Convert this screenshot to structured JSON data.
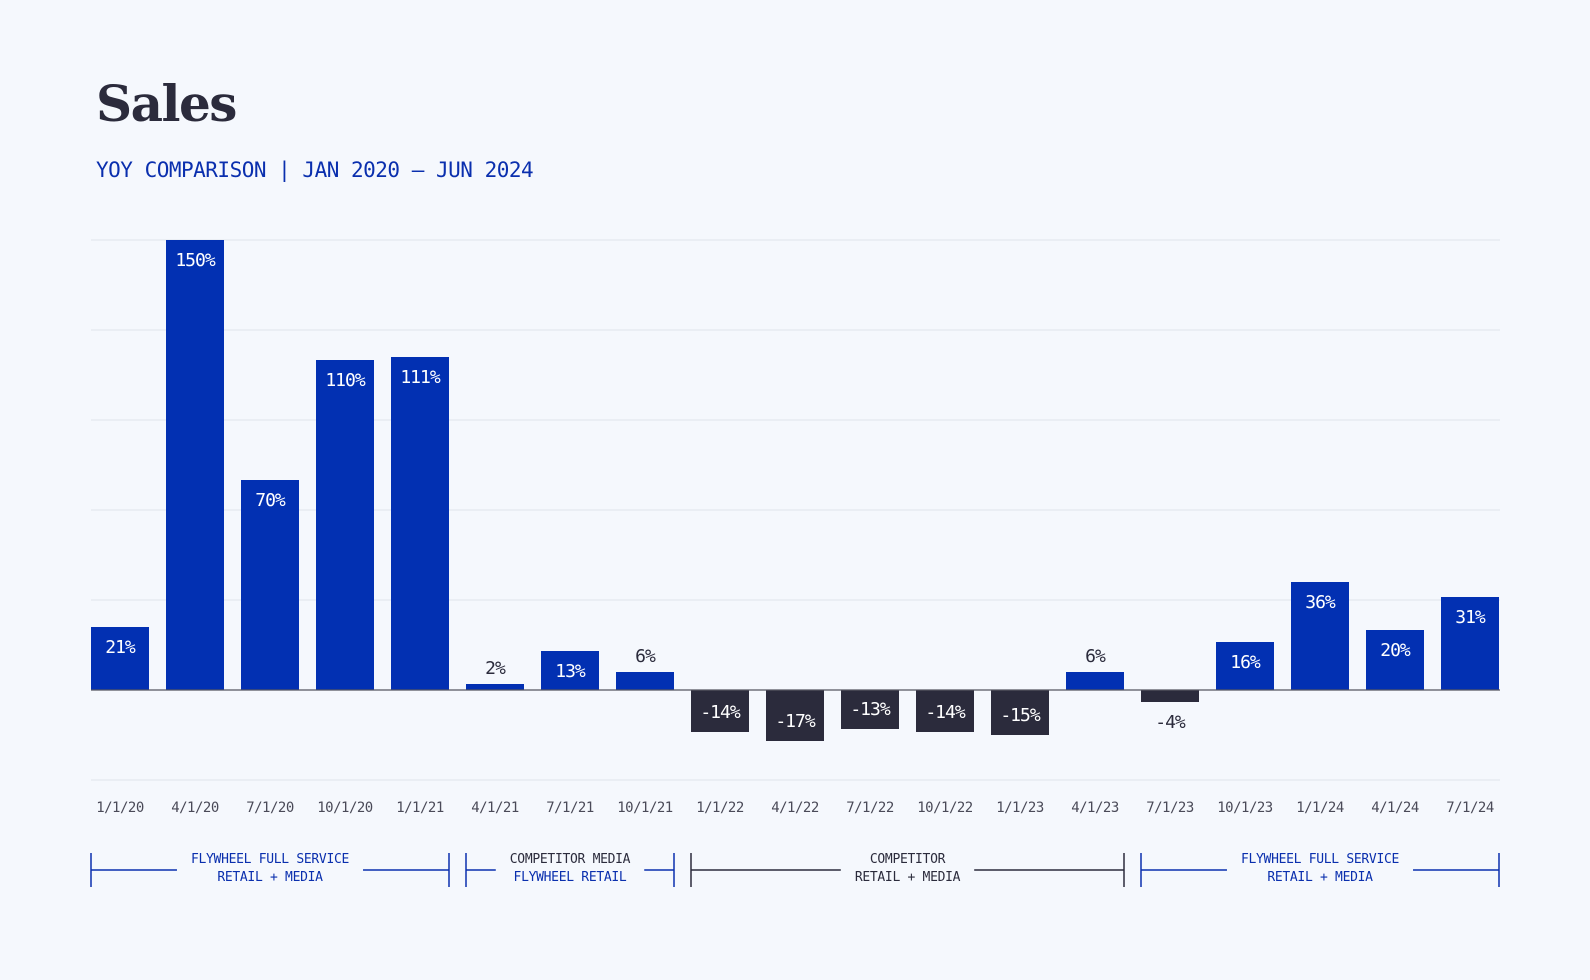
{
  "colors": {
    "positive": "#0230b2",
    "negative": "#2b2b3c",
    "background": "#f5f8fd",
    "gridline": "#e3e8f0",
    "label_inside": "#ffffff",
    "label_outside": "#2b2b3c"
  },
  "chart_data": {
    "type": "bar",
    "title": "Sales",
    "subtitle": "YOY COMPARISON | JAN 2020 – JUN 2024",
    "ylim": [
      -30,
      150
    ],
    "grid": true,
    "categories": [
      "1/1/20",
      "4/1/20",
      "7/1/20",
      "10/1/20",
      "1/1/21",
      "4/1/21",
      "7/1/21",
      "10/1/21",
      "1/1/22",
      "4/1/22",
      "7/1/22",
      "10/1/22",
      "1/1/23",
      "4/1/23",
      "7/1/23",
      "10/1/23",
      "1/1/24",
      "4/1/24",
      "7/1/24"
    ],
    "values": [
      21,
      150,
      70,
      110,
      111,
      2,
      13,
      6,
      -14,
      -17,
      -13,
      -14,
      -15,
      6,
      -4,
      16,
      36,
      20,
      31
    ],
    "labels": [
      "21%",
      "150%",
      "70%",
      "110%",
      "111%",
      "2%",
      "13%",
      "6%",
      "-14%",
      "-17%",
      "-13%",
      "-14%",
      "-15%",
      "6%",
      "-4%",
      "16%",
      "36%",
      "20%",
      "31%"
    ],
    "periods": [
      {
        "start": 0,
        "end": 4,
        "color": "#0a2fae",
        "lines": [
          {
            "text": "FLYWHEEL FULL SERVICE",
            "color": "#0a2fae"
          },
          {
            "text": "RETAIL + MEDIA",
            "color": "#0a2fae"
          }
        ]
      },
      {
        "start": 5,
        "end": 7,
        "color": "#0a2fae",
        "lines": [
          {
            "text": "COMPETITOR MEDIA",
            "color": "#2b2b3c"
          },
          {
            "text": "FLYWHEEL RETAIL",
            "color": "#0a2fae"
          }
        ]
      },
      {
        "start": 8,
        "end": 13,
        "color": "#2b2b3c",
        "lines": [
          {
            "text": "COMPETITOR",
            "color": "#2b2b3c"
          },
          {
            "text": "RETAIL + MEDIA",
            "color": "#2b2b3c"
          }
        ]
      },
      {
        "start": 14,
        "end": 18,
        "color": "#0a2fae",
        "lines": [
          {
            "text": "FLYWHEEL FULL SERVICE",
            "color": "#0a2fae"
          },
          {
            "text": "RETAIL + MEDIA",
            "color": "#0a2fae"
          }
        ]
      }
    ]
  }
}
